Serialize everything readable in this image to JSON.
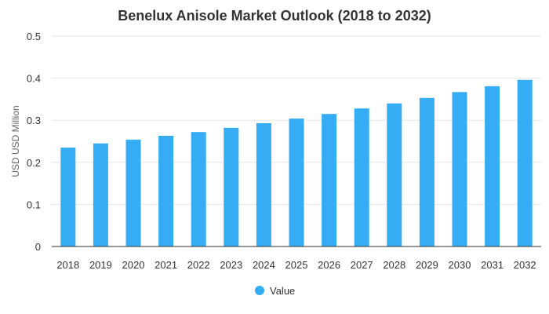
{
  "chart_data": {
    "type": "bar",
    "title": "Benelux Anisole Market Outlook (2018 to 2032)",
    "xlabel": "",
    "ylabel": "USD USD Million",
    "categories": [
      "2018",
      "2019",
      "2020",
      "2021",
      "2022",
      "2023",
      "2024",
      "2025",
      "2026",
      "2027",
      "2028",
      "2029",
      "2030",
      "2031",
      "2032"
    ],
    "series": [
      {
        "name": "Value",
        "color": "#35acf4",
        "values": [
          0.235,
          0.245,
          0.254,
          0.263,
          0.272,
          0.282,
          0.293,
          0.304,
          0.315,
          0.328,
          0.34,
          0.353,
          0.367,
          0.381,
          0.396
        ]
      }
    ],
    "ylim": [
      0,
      0.5
    ],
    "yticks": [
      "0",
      "0.1",
      "0.2",
      "0.3",
      "0.4",
      "0.5"
    ],
    "grid": true,
    "legend": "bottom-center"
  }
}
